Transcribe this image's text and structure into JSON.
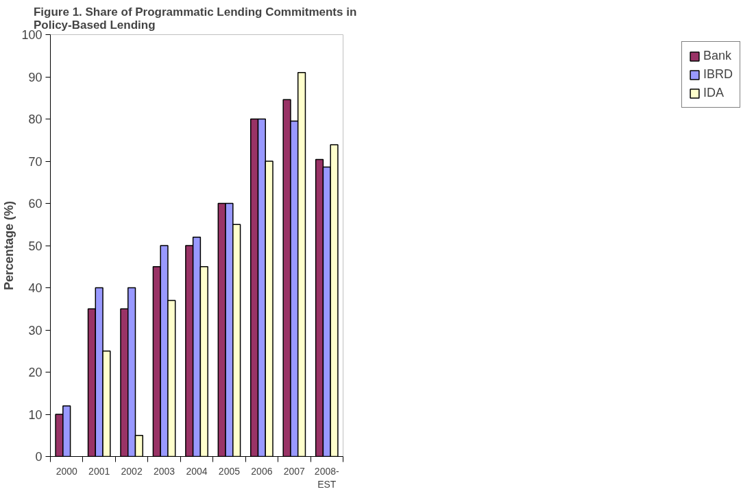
{
  "chart_data": {
    "type": "bar",
    "title": "Figure 1.  Share of Programmatic Lending Commitments in Policy-Based Lending",
    "ylabel": "Percentage (%)",
    "categories": [
      "2000",
      "2001",
      "2002",
      "2003",
      "2004",
      "2005",
      "2006",
      "2007",
      "2008-EST"
    ],
    "series": [
      {
        "name": "Bank",
        "color": "#993366",
        "values": [
          10,
          35,
          35,
          45,
          50,
          60,
          80,
          84.6,
          70.4
        ]
      },
      {
        "name": "IBRD",
        "color": "#9999ff",
        "values": [
          12,
          40,
          40,
          50,
          52,
          60,
          80,
          79.5,
          68.6
        ]
      },
      {
        "name": "IDA",
        "color": "#ffffcc",
        "values": [
          null,
          25,
          5,
          37,
          45,
          55,
          70,
          91,
          73.9
        ]
      }
    ],
    "ylim": [
      0,
      100
    ],
    "yticks": [
      0,
      10,
      20,
      30,
      40,
      50,
      60,
      70,
      80,
      90,
      100
    ],
    "grid": false,
    "legend": "right"
  }
}
